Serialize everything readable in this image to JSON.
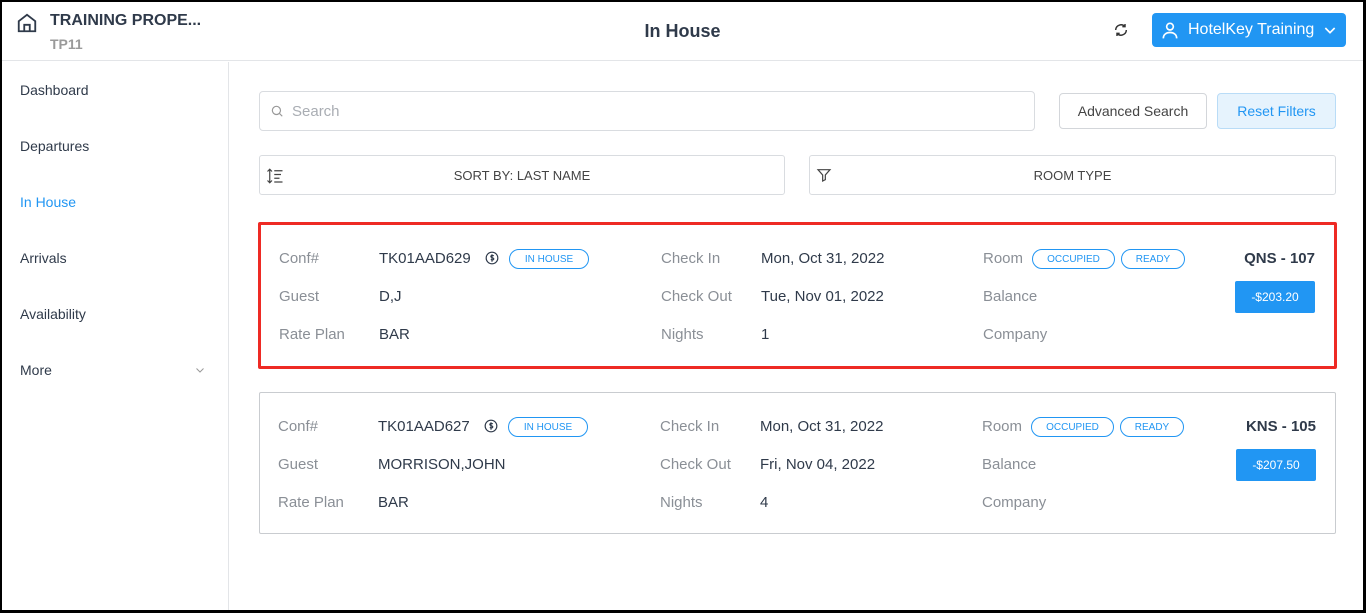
{
  "header": {
    "property_name": "TRAINING PROPE...",
    "property_code": "TP11",
    "title": "In House",
    "user_label": "HotelKey Training"
  },
  "sidebar": {
    "items": [
      {
        "label": "Dashboard"
      },
      {
        "label": "Departures"
      },
      {
        "label": "In House",
        "active": true
      },
      {
        "label": "Arrivals"
      },
      {
        "label": "Availability"
      },
      {
        "label": "More"
      }
    ]
  },
  "search": {
    "placeholder": "Search"
  },
  "buttons": {
    "advanced": "Advanced Search",
    "reset": "Reset Filters"
  },
  "filters": {
    "sort": "SORT BY: LAST NAME",
    "room_type": "ROOM TYPE"
  },
  "labels": {
    "conf": "Conf#",
    "guest": "Guest",
    "rate_plan": "Rate Plan",
    "check_in": "Check In",
    "check_out": "Check Out",
    "nights": "Nights",
    "room": "Room",
    "balance": "Balance",
    "company": "Company"
  },
  "accent": "#2196f3",
  "reservations": [
    {
      "conf": "TK01AAD629",
      "status": "IN HOUSE",
      "guest": "D,J",
      "rate_plan": "BAR",
      "check_in": "Mon, Oct 31, 2022",
      "check_out": "Tue, Nov 01, 2022",
      "nights": "1",
      "room_status": "OCCUPIED",
      "hk_status": "READY",
      "room": "QNS - 107",
      "balance": "-$203.20",
      "highlighted": true
    },
    {
      "conf": "TK01AAD627",
      "status": "IN HOUSE",
      "guest": "MORRISON,JOHN",
      "rate_plan": "BAR",
      "check_in": "Mon, Oct 31, 2022",
      "check_out": "Fri, Nov 04, 2022",
      "nights": "4",
      "room_status": "OCCUPIED",
      "hk_status": "READY",
      "room": "KNS - 105",
      "balance": "-$207.50"
    }
  ]
}
